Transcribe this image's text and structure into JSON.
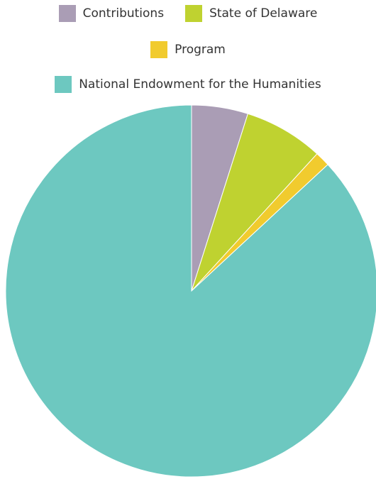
{
  "chart_data": {
    "type": "pie",
    "title": "",
    "legend_position": "top",
    "categories": [
      "Contributions",
      "State of Delaware",
      "Program",
      "National Endowment for the Humanities"
    ],
    "values": [
      4.9,
      6.9,
      1.3,
      86.9
    ],
    "unit": "%",
    "colors": [
      "#aa9db5",
      "#bfd230",
      "#f1cb2e",
      "#6dc8c0"
    ],
    "start_angle_deg": 0,
    "direction": "clockwise"
  }
}
